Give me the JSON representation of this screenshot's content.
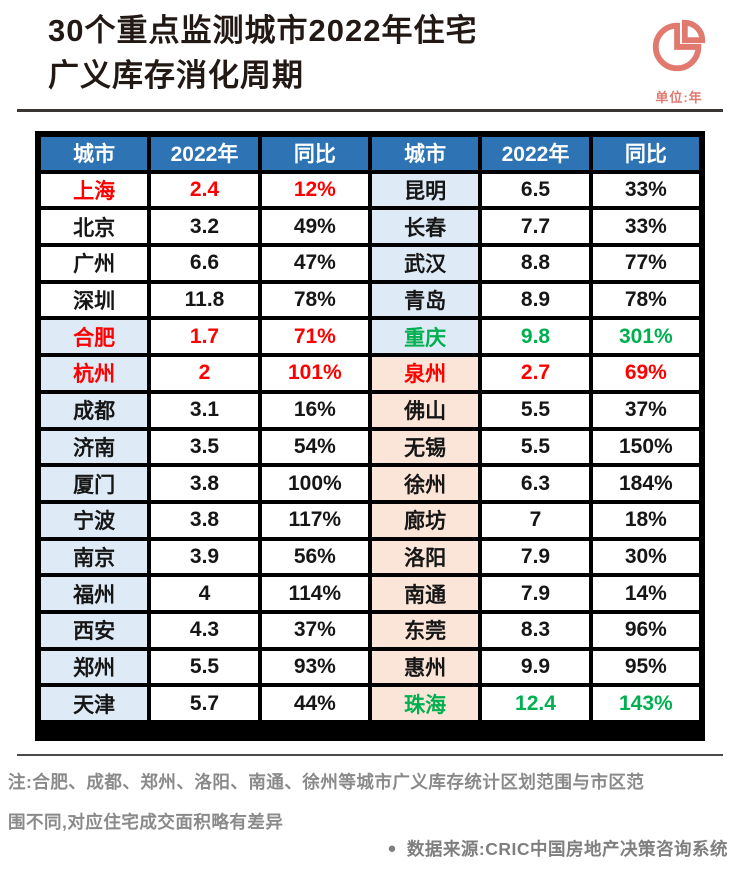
{
  "title": {
    "line1": "30个重点监测城市2022年住宅",
    "line2": "广义库存消化周期"
  },
  "unit_label": "单位:年",
  "icons": {
    "corner_icon": "pie-chart-icon",
    "source_bullet": "●"
  },
  "colors": {
    "header_blue": "#2E74B5",
    "light_blue": "#DEEAF6",
    "peach": "#FBE5D8",
    "red": "#FE0000",
    "green": "#00B050",
    "coral": "#E2796F",
    "note_gray": "#8A8A8A",
    "title_color": "#221814",
    "table_background": "#000000"
  },
  "table": {
    "headers": [
      "城市",
      "2022年",
      "同比",
      "城市",
      "2022年",
      "同比"
    ]
  },
  "chart_data": {
    "type": "table",
    "title": "30个重点监测城市2022年住宅广义库存消化周期",
    "unit": "年",
    "columns": [
      "城市",
      "2022年",
      "同比"
    ],
    "layout_hint": "two side-by-side halves: rows 0-14 left, rows 15-29 right",
    "rows": [
      {
        "city": "上海",
        "value": "2.4",
        "yoy": "12%",
        "text": "red",
        "bg": "white"
      },
      {
        "city": "北京",
        "value": "3.2",
        "yoy": "49%",
        "text": "black",
        "bg": "white"
      },
      {
        "city": "广州",
        "value": "6.6",
        "yoy": "47%",
        "text": "black",
        "bg": "white"
      },
      {
        "city": "深圳",
        "value": "11.8",
        "yoy": "78%",
        "text": "black",
        "bg": "white"
      },
      {
        "city": "合肥",
        "value": "1.7",
        "yoy": "71%",
        "text": "red",
        "bg": "blue"
      },
      {
        "city": "杭州",
        "value": "2",
        "yoy": "101%",
        "text": "red",
        "bg": "blue"
      },
      {
        "city": "成都",
        "value": "3.1",
        "yoy": "16%",
        "text": "black",
        "bg": "blue"
      },
      {
        "city": "济南",
        "value": "3.5",
        "yoy": "54%",
        "text": "black",
        "bg": "blue"
      },
      {
        "city": "厦门",
        "value": "3.8",
        "yoy": "100%",
        "text": "black",
        "bg": "blue"
      },
      {
        "city": "宁波",
        "value": "3.8",
        "yoy": "117%",
        "text": "black",
        "bg": "blue"
      },
      {
        "city": "南京",
        "value": "3.9",
        "yoy": "56%",
        "text": "black",
        "bg": "blue"
      },
      {
        "city": "福州",
        "value": "4",
        "yoy": "114%",
        "text": "black",
        "bg": "blue"
      },
      {
        "city": "西安",
        "value": "4.3",
        "yoy": "37%",
        "text": "black",
        "bg": "blue"
      },
      {
        "city": "郑州",
        "value": "5.5",
        "yoy": "93%",
        "text": "black",
        "bg": "blue"
      },
      {
        "city": "天津",
        "value": "5.7",
        "yoy": "44%",
        "text": "black",
        "bg": "blue"
      },
      {
        "city": "昆明",
        "value": "6.5",
        "yoy": "33%",
        "text": "black",
        "bg": "blue"
      },
      {
        "city": "长春",
        "value": "7.7",
        "yoy": "33%",
        "text": "black",
        "bg": "blue"
      },
      {
        "city": "武汉",
        "value": "8.8",
        "yoy": "77%",
        "text": "black",
        "bg": "blue"
      },
      {
        "city": "青岛",
        "value": "8.9",
        "yoy": "78%",
        "text": "black",
        "bg": "blue"
      },
      {
        "city": "重庆",
        "value": "9.8",
        "yoy": "301%",
        "text": "green",
        "bg": "blue"
      },
      {
        "city": "泉州",
        "value": "2.7",
        "yoy": "69%",
        "text": "red",
        "bg": "peach"
      },
      {
        "city": "佛山",
        "value": "5.5",
        "yoy": "37%",
        "text": "black",
        "bg": "peach"
      },
      {
        "city": "无锡",
        "value": "5.5",
        "yoy": "150%",
        "text": "black",
        "bg": "peach"
      },
      {
        "city": "徐州",
        "value": "6.3",
        "yoy": "184%",
        "text": "black",
        "bg": "peach"
      },
      {
        "city": "廊坊",
        "value": "7",
        "yoy": "18%",
        "text": "black",
        "bg": "peach"
      },
      {
        "city": "洛阳",
        "value": "7.9",
        "yoy": "30%",
        "text": "black",
        "bg": "peach"
      },
      {
        "city": "南通",
        "value": "7.9",
        "yoy": "14%",
        "text": "black",
        "bg": "peach"
      },
      {
        "city": "东莞",
        "value": "8.3",
        "yoy": "96%",
        "text": "black",
        "bg": "peach"
      },
      {
        "city": "惠州",
        "value": "9.9",
        "yoy": "95%",
        "text": "black",
        "bg": "peach"
      },
      {
        "city": "珠海",
        "value": "12.4",
        "yoy": "143%",
        "text": "green",
        "bg": "peach"
      }
    ]
  },
  "note": {
    "lines": [
      "注:合肥、成都、郑州、洛阳、南通、徐州等城市广义库存统计区划范围与市区范",
      "围不同,对应住宅成交面积略有差异"
    ]
  },
  "source": "数据来源:CRIC中国房地产决策咨询系统"
}
